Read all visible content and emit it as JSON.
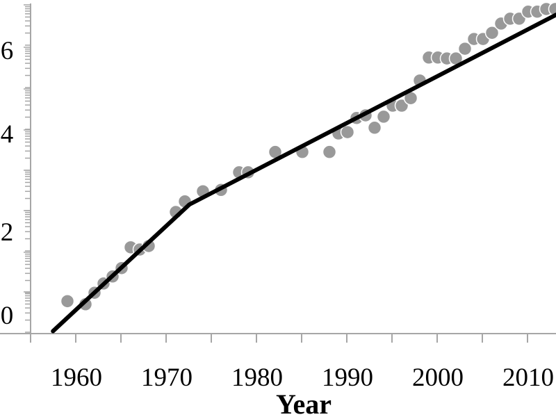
{
  "chart_data": {
    "type": "scatter",
    "title": "",
    "xlabel": "Year",
    "ylabel": "",
    "xlim": [
      1955,
      2013.1
    ],
    "ylim": [
      -0.42,
      7.4
    ],
    "x_ticks": [
      1960,
      1970,
      1980,
      1990,
      2000,
      2010
    ],
    "x_tick_labels": [
      "1960",
      "1970",
      "1980",
      "1990",
      "2000",
      "2010"
    ],
    "y_ticks": [
      0,
      2,
      4,
      6
    ],
    "y_tick_labels": [
      "0",
      "2",
      "4",
      "6"
    ],
    "grid": false,
    "colors": {
      "points": "#999999",
      "point_edge": "#ffffff",
      "fit_line": "#000000",
      "axis": "#a6a6a6"
    },
    "points": {
      "x": [
        1959,
        1961,
        1962,
        1963,
        1964,
        1965,
        1966,
        1967,
        1968,
        1971,
        1972,
        1974,
        1976,
        1978,
        1979,
        1982,
        1985,
        1988,
        1989,
        1990,
        1991,
        1992,
        1993,
        1994,
        1995,
        1996,
        1997,
        1998,
        1999,
        2000,
        2001,
        2002,
        2003,
        2004,
        2005,
        2006,
        2007,
        2008,
        2009,
        2010,
        2011,
        2012,
        2013
      ],
      "y": [
        0.31,
        0.24,
        0.5,
        0.71,
        0.87,
        1.06,
        1.53,
        1.48,
        1.56,
        2.33,
        2.57,
        2.8,
        2.83,
        3.23,
        3.23,
        3.69,
        3.69,
        3.69,
        4.11,
        4.14,
        4.46,
        4.52,
        4.24,
        4.49,
        4.74,
        4.74,
        4.91,
        5.31,
        5.83,
        5.83,
        5.81,
        5.81,
        6.03,
        6.25,
        6.25,
        6.39,
        6.6,
        6.71,
        6.71,
        6.87,
        6.87,
        6.93,
        6.93
      ]
    },
    "fit_line": {
      "x": [
        1957.4,
        1972.5,
        2013.1
      ],
      "y": [
        -0.37,
        2.5,
        6.8
      ]
    }
  }
}
